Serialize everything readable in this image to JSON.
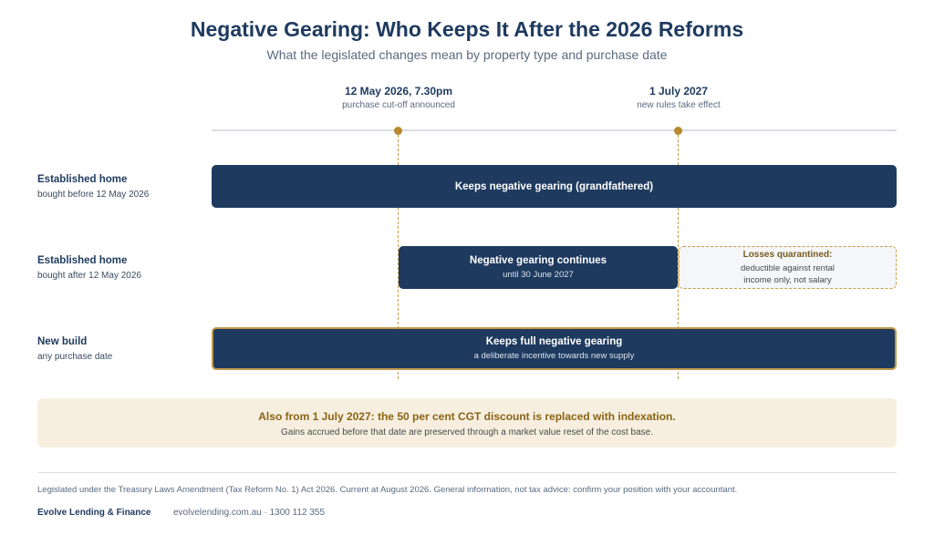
{
  "header": {
    "title": "Negative Gearing: Who Keeps It After the 2026 Reforms",
    "subtitle": "What the legislated changes mean by property type and purchase date"
  },
  "milestones": [
    {
      "date": "12 May 2026, 7.30pm",
      "note": "purchase cut-off announced"
    },
    {
      "date": "1 July 2027",
      "note": "new rules take effect"
    }
  ],
  "rows": [
    {
      "label": "Established home",
      "sublabel": "bought before 12 May 2026",
      "bar": {
        "title": "Keeps negative gearing (grandfathered)"
      }
    },
    {
      "label": "Established home",
      "sublabel": "bought after 12 May 2026",
      "bar": {
        "title": "Negative gearing continues",
        "sub": "until 30 June 2027"
      },
      "quarantine": {
        "title": "Losses quarantined:",
        "sub": "deductible against rental income only, not salary"
      }
    },
    {
      "label": "New build",
      "sublabel": "any purchase date",
      "bar": {
        "title": "Keeps full negative gearing",
        "sub": "a deliberate incentive towards new supply"
      }
    }
  ],
  "callout": {
    "title": "Also from 1 July 2027: the 50 per cent CGT discount is replaced with indexation.",
    "sub": "Gains accrued before that date are preserved through a market value reset of the cost base."
  },
  "footer": {
    "note": "Legislated under the Treasury Laws Amendment (Tax Reform No. 1) Act 2026. Current at August 2026. General information, not tax advice: confirm your position with your accountant.",
    "brand": "Evolve Lending & Finance",
    "contact": "evolvelending.com.au · 1300 112 355"
  },
  "colors": {
    "navy": "#1e3a5f",
    "gold": "#b8892e",
    "callout_bg": "#f6efe0"
  }
}
